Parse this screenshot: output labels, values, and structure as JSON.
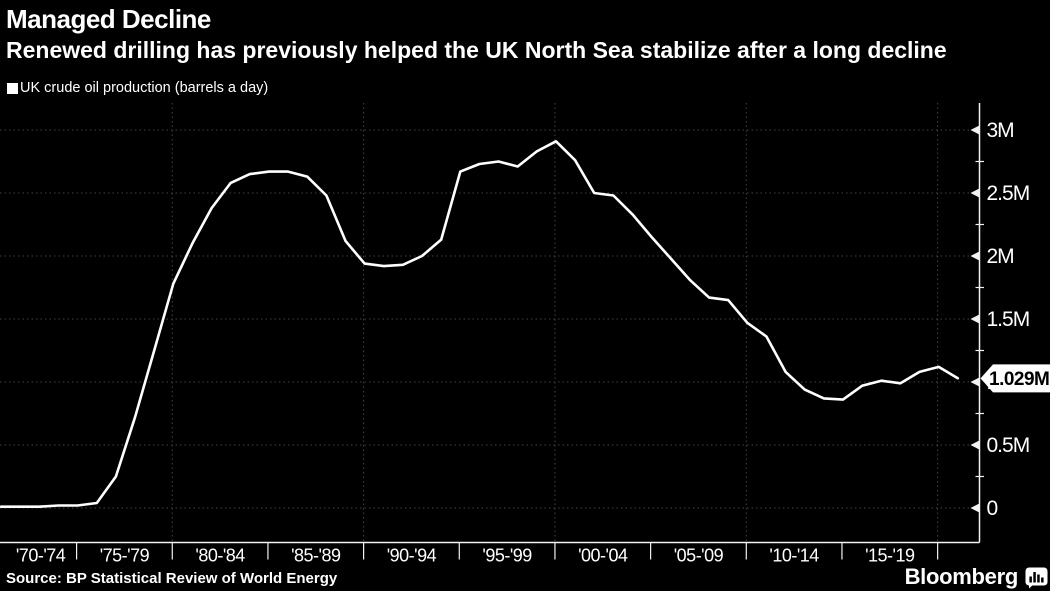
{
  "header": {
    "title": "Managed Decline",
    "subtitle": "Renewed drilling has previously helped the UK North Sea stabilize after a long decline"
  },
  "legend": {
    "marker": "square",
    "marker_color": "#ffffff",
    "label": "UK crude oil production (barrels a day)"
  },
  "chart_data": {
    "type": "line",
    "title": "Managed Decline",
    "background_color": "#000000",
    "text_color": "#ffffff",
    "gridline_color": "#454545",
    "axis_color": "#f2f2f2",
    "grid": true,
    "legend_position": "top-left",
    "series": [
      {
        "name": "UK crude oil production (barrels a day)",
        "unit": "million barrels a day",
        "color": "#ffffff",
        "x": [
          1970,
          1971,
          1972,
          1973,
          1974,
          1975,
          1976,
          1977,
          1978,
          1979,
          1980,
          1981,
          1982,
          1983,
          1984,
          1985,
          1986,
          1987,
          1988,
          1989,
          1990,
          1991,
          1992,
          1993,
          1994,
          1995,
          1996,
          1997,
          1998,
          1999,
          2000,
          2001,
          2002,
          2003,
          2004,
          2005,
          2006,
          2007,
          2008,
          2009,
          2010,
          2011,
          2012,
          2013,
          2014,
          2015,
          2016,
          2017,
          2018,
          2019,
          2020
        ],
        "y": [
          0.01,
          0.01,
          0.01,
          0.02,
          0.02,
          0.04,
          0.25,
          0.72,
          1.25,
          1.78,
          2.1,
          2.38,
          2.58,
          2.65,
          2.67,
          2.67,
          2.63,
          2.48,
          2.12,
          1.94,
          1.92,
          1.93,
          2.0,
          2.13,
          2.67,
          2.73,
          2.75,
          2.71,
          2.83,
          2.91,
          2.76,
          2.5,
          2.48,
          2.33,
          2.15,
          1.98,
          1.81,
          1.67,
          1.65,
          1.47,
          1.36,
          1.08,
          0.94,
          0.87,
          0.86,
          0.97,
          1.01,
          0.99,
          1.08,
          1.12,
          1.029
        ]
      }
    ],
    "x_axis": {
      "tick_labels": [
        "'70-'74",
        "'75-'79",
        "'80-'84",
        "'85-'89",
        "'90-'94",
        "'95-'99",
        "'00-'04",
        "'05-'09",
        "'10-'14",
        "'15-'19"
      ],
      "gridline_years": [
        1980,
        1990,
        2000,
        2010,
        2020
      ]
    },
    "y_axis": {
      "side": "right",
      "range": [
        0,
        3.25
      ],
      "tick_values": [
        0,
        0.5,
        1,
        1.5,
        2,
        2.5,
        3
      ],
      "tick_labels": [
        "0",
        "0.5M",
        "1M",
        "1.5M",
        "2M",
        "2.5M",
        "3M"
      ],
      "minor_tick_values": [
        0.25,
        0.75,
        1.25,
        1.75,
        2.25,
        2.75
      ]
    },
    "current_value": {
      "label": "1.029M",
      "value": 1.029,
      "year": 2020
    }
  },
  "footer": {
    "source": "Source: BP Statistical Review of World Energy",
    "brand": "Bloomberg"
  }
}
